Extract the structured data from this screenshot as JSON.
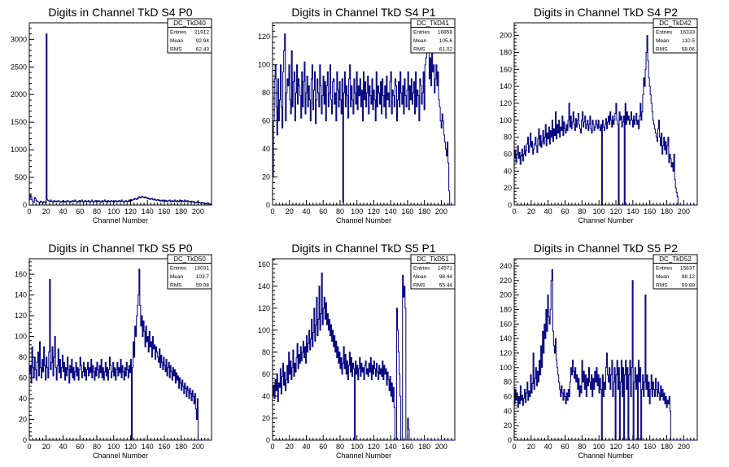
{
  "chart_data": [
    {
      "type": "histogram",
      "title": "Digits in Channel TkD S4 P0",
      "xlabel": "Channel Number",
      "ylabel": "",
      "xlim": [
        0,
        216
      ],
      "ylim": [
        0,
        3300
      ],
      "xticks": [
        0,
        20,
        40,
        60,
        80,
        100,
        120,
        140,
        160,
        180,
        200
      ],
      "yticks": [
        0,
        500,
        1000,
        1500,
        2000,
        2500,
        3000
      ],
      "line_color": "#000080",
      "stats": {
        "name": "DC_TkD40",
        "entries": "21912",
        "mean": "92.94",
        "rms": "62.43"
      },
      "values": [
        120,
        180,
        150,
        90,
        60,
        50,
        140,
        110,
        80,
        70,
        60,
        50,
        40,
        70,
        60,
        50,
        40,
        60,
        55,
        30,
        3100,
        100,
        80,
        70,
        60,
        90,
        70,
        60,
        50,
        80,
        70,
        60,
        70,
        60,
        80,
        70,
        60,
        50,
        60,
        70,
        80,
        60,
        50,
        70,
        60,
        80,
        70,
        60,
        50,
        70,
        60,
        80,
        70,
        60,
        90,
        70,
        60,
        50,
        70,
        80,
        60,
        70,
        90,
        60,
        50,
        70,
        80,
        60,
        70,
        60,
        80,
        60,
        50,
        70,
        90,
        60,
        50,
        70,
        80,
        60,
        70,
        60,
        80,
        70,
        60,
        50,
        80,
        60,
        70,
        90,
        60,
        70,
        50,
        80,
        60,
        70,
        60,
        80,
        70,
        60,
        50,
        70,
        80,
        60,
        70,
        60,
        80,
        70,
        60,
        90,
        70,
        60,
        50,
        70,
        80,
        60,
        70,
        60,
        90,
        70,
        100,
        80,
        90,
        110,
        100,
        120,
        110,
        100,
        130,
        120,
        150,
        140,
        130,
        160,
        150,
        140,
        130,
        150,
        140,
        120,
        130,
        110,
        120,
        100,
        110,
        120,
        100,
        90,
        110,
        100,
        80,
        90,
        100,
        80,
        90,
        70,
        80,
        90,
        70,
        80,
        90,
        70,
        80,
        60,
        70,
        80,
        90,
        60,
        70,
        80,
        60,
        70,
        90,
        70,
        60,
        80,
        70,
        60,
        90,
        70,
        60,
        80,
        70,
        60,
        90,
        70,
        60,
        80,
        60,
        70,
        60,
        50,
        70,
        60,
        50,
        60,
        50,
        40,
        50,
        60,
        40,
        50,
        40,
        30,
        50,
        40,
        30,
        40,
        30,
        20,
        30,
        40,
        30,
        20,
        10,
        20
      ]
    },
    {
      "type": "histogram",
      "title": "Digits in Channel TkD S4 P1",
      "xlabel": "Channel Number",
      "ylabel": "",
      "xlim": [
        0,
        216
      ],
      "ylim": [
        0,
        130
      ],
      "xticks": [
        0,
        20,
        40,
        60,
        80,
        100,
        120,
        140,
        160,
        180,
        200
      ],
      "yticks": [
        0,
        20,
        40,
        60,
        80,
        100,
        120
      ],
      "line_color": "#000080",
      "stats": {
        "name": "DC_TkD41",
        "entries": "16858",
        "mean": "105.6",
        "rms": "61.02"
      },
      "values": [
        20,
        60,
        90,
        100,
        70,
        50,
        90,
        60,
        75,
        100,
        70,
        55,
        95,
        110,
        122,
        60,
        80,
        90,
        85,
        100,
        75,
        65,
        110,
        70,
        88,
        95,
        60,
        80,
        100,
        72,
        90,
        85,
        78,
        62,
        95,
        70,
        88,
        102,
        65,
        80,
        92,
        70,
        85,
        75,
        60,
        90,
        100,
        68,
        82,
        95,
        58,
        75,
        90,
        80,
        70,
        100,
        85,
        65,
        78,
        92,
        72,
        88,
        60,
        85,
        95,
        70,
        80,
        100,
        75,
        65,
        88,
        90,
        72,
        80,
        60,
        95,
        82,
        70,
        88,
        75,
        65,
        90,
        2,
        80,
        95,
        70,
        85,
        78,
        62,
        90,
        100,
        70,
        85,
        75,
        65,
        90,
        80,
        72,
        95,
        68,
        85,
        78,
        90,
        70,
        82,
        60,
        95,
        75,
        88,
        70,
        80,
        92,
        65,
        85,
        78,
        72,
        90,
        68,
        82,
        75,
        60,
        95,
        70,
        85,
        80,
        72,
        88,
        65,
        90,
        78,
        70,
        85,
        62,
        92,
        75,
        80,
        70,
        88,
        95,
        65,
        82,
        78,
        70,
        90,
        85,
        60,
        75,
        88,
        70,
        95,
        80,
        72,
        85,
        65,
        90,
        78,
        70,
        82,
        95,
        68,
        85,
        75,
        90,
        72,
        80,
        88,
        65,
        95,
        70,
        82,
        78,
        60,
        90,
        85,
        72,
        80,
        95,
        68,
        100,
        105,
        110,
        115,
        120,
        90,
        105,
        85,
        110,
        95,
        100,
        80,
        90,
        100,
        85,
        95,
        75,
        70,
        60,
        55,
        65,
        60,
        50,
        45,
        40,
        35,
        45,
        30,
        10,
        0,
        0,
        0,
        0,
        0,
        0
      ]
    },
    {
      "type": "histogram",
      "title": "Digits in Channel TkD S4 P2",
      "xlabel": "Channel Number",
      "ylabel": "",
      "xlim": [
        0,
        216
      ],
      "ylim": [
        0,
        215
      ],
      "xticks": [
        0,
        20,
        40,
        60,
        80,
        100,
        120,
        140,
        160,
        180,
        200
      ],
      "yticks": [
        0,
        20,
        40,
        60,
        80,
        100,
        120,
        140,
        160,
        180,
        200
      ],
      "line_color": "#000080",
      "stats": {
        "name": "DC_TkD42",
        "entries": "16333",
        "mean": "110.5",
        "rms": "58.06"
      },
      "values": [
        55,
        65,
        50,
        60,
        70,
        55,
        62,
        48,
        58,
        66,
        52,
        60,
        70,
        58,
        64,
        72,
        80,
        62,
        70,
        85,
        68,
        75,
        60,
        66,
        72,
        80,
        70,
        62,
        78,
        90,
        70,
        82,
        68,
        75,
        88,
        72,
        80,
        95,
        70,
        85,
        78,
        92,
        72,
        88,
        80,
        100,
        75,
        90,
        82,
        110,
        78,
        95,
        85,
        100,
        80,
        92,
        88,
        105,
        82,
        98,
        90,
        85,
        95,
        88,
        100,
        120,
        92,
        105,
        90,
        98,
        110,
        95,
        88,
        102,
        92,
        100,
        108,
        95,
        90,
        85,
        100,
        110,
        92,
        98,
        105,
        90,
        95,
        100,
        88,
        95,
        105,
        90,
        85,
        100,
        95,
        88,
        92,
        100,
        95,
        90,
        100,
        92,
        88,
        95,
        0,
        100,
        92,
        88,
        95,
        102,
        90,
        98,
        105,
        95,
        110,
        100,
        92,
        105,
        95,
        100,
        108,
        120,
        100,
        95,
        0,
        110,
        100,
        105,
        92,
        98,
        105,
        0,
        120,
        95,
        110,
        100,
        105,
        95,
        100,
        110,
        100,
        92,
        105,
        95,
        100,
        108,
        95,
        100,
        90,
        105,
        120,
        100,
        110,
        130,
        150,
        140,
        160,
        180,
        200,
        170,
        150,
        140,
        130,
        120,
        110,
        100,
        95,
        90,
        85,
        80,
        75,
        90,
        100,
        80,
        70,
        85,
        60,
        70,
        80,
        65,
        75,
        60,
        70,
        80,
        50,
        60,
        55,
        45,
        50,
        40,
        60,
        30,
        20,
        15,
        10,
        0,
        0,
        0,
        0,
        0,
        0,
        0,
        0,
        0,
        0,
        0,
        0,
        0,
        0,
        0,
        0,
        0,
        0,
        0,
        0,
        0,
        0,
        0
      ]
    },
    {
      "type": "histogram",
      "title": "Digits in Channel TkD S5 P0",
      "xlabel": "Channel Number",
      "ylabel": "",
      "xlim": [
        0,
        216
      ],
      "ylim": [
        0,
        175
      ],
      "xticks": [
        0,
        20,
        40,
        60,
        80,
        100,
        120,
        140,
        160,
        180,
        200
      ],
      "yticks": [
        0,
        20,
        40,
        60,
        80,
        100,
        120,
        140,
        160
      ],
      "line_color": "#000080",
      "stats": {
        "name": "DC_TkD50",
        "entries": "16031",
        "mean": "103.7",
        "rms": "59.08"
      },
      "values": [
        65,
        72,
        55,
        90,
        70,
        60,
        80,
        68,
        58,
        75,
        85,
        62,
        95,
        70,
        60,
        78,
        66,
        90,
        72,
        58,
        80,
        70,
        60,
        85,
        155,
        68,
        75,
        90,
        62,
        80,
        100,
        70,
        58,
        72,
        88,
        65,
        78,
        60,
        70,
        82,
        66,
        75,
        58,
        70,
        62,
        80,
        68,
        55,
        72,
        65,
        78,
        60,
        70,
        58,
        66,
        75,
        62,
        70,
        58,
        68,
        80,
        72,
        60,
        66,
        75,
        62,
        70,
        58,
        68,
        75,
        62,
        70,
        65,
        78,
        60,
        72,
        66,
        58,
        70,
        62,
        75,
        68,
        60,
        72,
        65,
        78,
        60,
        70,
        58,
        66,
        75,
        62,
        70,
        58,
        68,
        80,
        72,
        60,
        66,
        75,
        62,
        70,
        58,
        68,
        75,
        62,
        70,
        65,
        78,
        60,
        72,
        66,
        58,
        70,
        62,
        75,
        68,
        60,
        72,
        65,
        78,
        0,
        70,
        95,
        80,
        110,
        100,
        120,
        130,
        140,
        165,
        130,
        110,
        120,
        100,
        115,
        105,
        90,
        110,
        95,
        100,
        85,
        105,
        90,
        95,
        80,
        100,
        88,
        92,
        78,
        90,
        85,
        80,
        75,
        88,
        70,
        82,
        75,
        68,
        80,
        72,
        66,
        78,
        62,
        70,
        75,
        60,
        72,
        66,
        58,
        70,
        62,
        68,
        55,
        65,
        58,
        62,
        50,
        60,
        55,
        48,
        58,
        52,
        45,
        55,
        50,
        42,
        52,
        48,
        40,
        50,
        45,
        38,
        48,
        42,
        35,
        45,
        30,
        20,
        40,
        0,
        0,
        0,
        0,
        0,
        0,
        0,
        0,
        0,
        0,
        0,
        0,
        0,
        0,
        0,
        0
      ]
    },
    {
      "type": "histogram",
      "title": "Digits in Channel TkD S5 P1",
      "xlabel": "Channel Number",
      "ylabel": "",
      "xlim": [
        0,
        216
      ],
      "ylim": [
        0,
        165
      ],
      "xticks": [
        0,
        20,
        40,
        60,
        80,
        100,
        120,
        140,
        160,
        180,
        200
      ],
      "yticks": [
        0,
        20,
        40,
        60,
        80,
        100,
        120,
        140,
        160
      ],
      "line_color": "#000080",
      "stats": {
        "name": "DC_TkD51",
        "entries": "14571",
        "mean": "98.44",
        "rms": "55.44"
      },
      "values": [
        40,
        50,
        38,
        55,
        45,
        60,
        35,
        52,
        48,
        65,
        42,
        58,
        70,
        50,
        62,
        45,
        55,
        68,
        52,
        80,
        60,
        72,
        55,
        66,
        82,
        58,
        70,
        62,
        75,
        88,
        65,
        78,
        70,
        85,
        72,
        80,
        90,
        75,
        85,
        70,
        95,
        80,
        88,
        100,
        82,
        92,
        110,
        85,
        98,
        120,
        90,
        105,
        130,
        95,
        110,
        140,
        100,
        115,
        152,
        105,
        120,
        130,
        110,
        125,
        105,
        115,
        100,
        110,
        95,
        105,
        90,
        100,
        85,
        95,
        80,
        90,
        75,
        85,
        70,
        80,
        65,
        75,
        60,
        70,
        85,
        65,
        78,
        60,
        72,
        55,
        68,
        80,
        62,
        75,
        58,
        70,
        65,
        0,
        72,
        60,
        68,
        55,
        65,
        75,
        58,
        70,
        62,
        66,
        55,
        68,
        72,
        60,
        65,
        58,
        70,
        62,
        75,
        55,
        68,
        60,
        72,
        65,
        58,
        70,
        62,
        55,
        68,
        60,
        65,
        58,
        72,
        55,
        68,
        60,
        65,
        50,
        62,
        55,
        45,
        58,
        40,
        52,
        35,
        48,
        30,
        0,
        0,
        120,
        100,
        80,
        60,
        40,
        0,
        0,
        150,
        130,
        140,
        120,
        0,
        0,
        20,
        10,
        0,
        0,
        0,
        0,
        0,
        0,
        0,
        0,
        0,
        0,
        0,
        0,
        0,
        0,
        0,
        0,
        0,
        0,
        0,
        0,
        0,
        0,
        0,
        0,
        0,
        0,
        0,
        0,
        0,
        0,
        0,
        0,
        0,
        0,
        0,
        0,
        0,
        0,
        0,
        0,
        0,
        0,
        0,
        0,
        0,
        0,
        0,
        0,
        0,
        0,
        0,
        0,
        0,
        0
      ]
    },
    {
      "type": "histogram",
      "title": "Digits in Channel TkD S5 P2",
      "xlabel": "Channel Number",
      "ylabel": "",
      "xlim": [
        0,
        216
      ],
      "ylim": [
        0,
        250
      ],
      "xticks": [
        0,
        20,
        40,
        60,
        80,
        100,
        120,
        140,
        160,
        180,
        200
      ],
      "yticks": [
        0,
        20,
        40,
        60,
        80,
        100,
        120,
        140,
        160,
        180,
        200,
        220,
        240
      ],
      "line_color": "#000080",
      "stats": {
        "name": "DC_TkD52",
        "entries": "15837",
        "mean": "98.12",
        "rms": "59.89"
      },
      "values": [
        50,
        70,
        55,
        65,
        45,
        60,
        50,
        75,
        55,
        62,
        48,
        58,
        70,
        52,
        65,
        80,
        55,
        68,
        60,
        90,
        65,
        78,
        120,
        70,
        85,
        100,
        75,
        95,
        80,
        110,
        90,
        130,
        100,
        150,
        120,
        160,
        140,
        180,
        150,
        200,
        170,
        160,
        180,
        220,
        235,
        150,
        130,
        120,
        140,
        110,
        100,
        90,
        80,
        70,
        60,
        75,
        65,
        55,
        70,
        60,
        50,
        65,
        55,
        70,
        60,
        80,
        100,
        90,
        110,
        95,
        85,
        100,
        80,
        90,
        70,
        85,
        60,
        75,
        65,
        110,
        80,
        95,
        70,
        90,
        60,
        85,
        75,
        100,
        80,
        70,
        90,
        60,
        85,
        70,
        95,
        80,
        100,
        75,
        90,
        65,
        85,
        70,
        0,
        90,
        60,
        80,
        70,
        100,
        120,
        90,
        80,
        100,
        70,
        90,
        110,
        60,
        80,
        100,
        0,
        90,
        110,
        70,
        100,
        0,
        80,
        110,
        60,
        100,
        0,
        90,
        110,
        70,
        100,
        0,
        90,
        110,
        60,
        100,
        220,
        0,
        80,
        100,
        70,
        90,
        0,
        110,
        80,
        100,
        0,
        70,
        90,
        60,
        80,
        200,
        70,
        90,
        60,
        80,
        50,
        70,
        90,
        60,
        80,
        70,
        60,
        85,
        70,
        60,
        80,
        65,
        55,
        75,
        60,
        70,
        55,
        65,
        50,
        60,
        45,
        55,
        50,
        60,
        40,
        0,
        0,
        0,
        0,
        0,
        0,
        0,
        0,
        0,
        0,
        0,
        0,
        0,
        0,
        0,
        0,
        0,
        0,
        0,
        0,
        0,
        0,
        0,
        0,
        0,
        0,
        0,
        0,
        0,
        0,
        0
      ]
    }
  ]
}
